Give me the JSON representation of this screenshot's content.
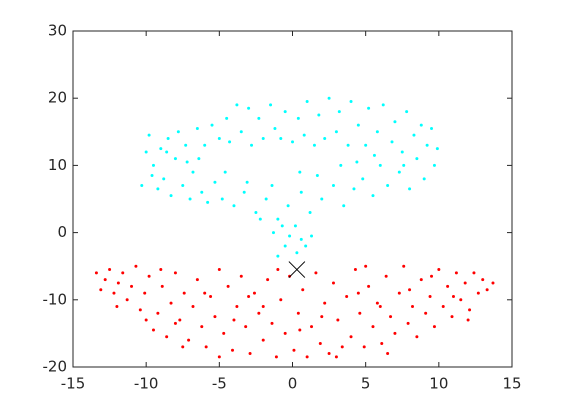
{
  "chart_data": {
    "type": "scatter",
    "xlim": [
      -15,
      15
    ],
    "xticks": [
      -15,
      -10,
      -5,
      0,
      5,
      10,
      15
    ],
    "ylim": [
      -20,
      30
    ],
    "yticks": [
      -20,
      -10,
      0,
      10,
      20,
      30
    ],
    "series": [
      {
        "color": "#00ffff",
        "marker": "dot",
        "x": [
          -10,
          -10.3,
          -9.8,
          -9.5,
          -9.2,
          -9,
          -8.8,
          -8.5,
          -8.3,
          -8,
          -7.8,
          -7.5,
          -7.3,
          -7,
          -6.8,
          -6.5,
          -6.2,
          -6,
          -5.8,
          -5.5,
          -5.3,
          -5,
          -4.8,
          -4.5,
          -4.3,
          -4,
          -3.8,
          -3.5,
          -3.3,
          -3,
          -2.8,
          -2.5,
          -2.3,
          -2,
          -1.8,
          -1.5,
          -1.2,
          -1,
          -0.8,
          -0.5,
          -0.3,
          0,
          0.2,
          0.4,
          0.6,
          0.8,
          1,
          1.2,
          1.5,
          1.8,
          2,
          2.2,
          2.5,
          2.8,
          3,
          3.2,
          3.5,
          3.8,
          4,
          4.2,
          4.5,
          4.8,
          5,
          5.2,
          5.5,
          5.8,
          6,
          6.2,
          6.5,
          6.8,
          7,
          7.3,
          7.5,
          7.8,
          8,
          8.3,
          8.5,
          8.8,
          9,
          9.2,
          9.5,
          9.7,
          9.9,
          -9.6,
          -8.6,
          -7.2,
          -4.6,
          -3.1,
          -2.2,
          -1.4,
          0.5,
          1.7,
          3.3,
          5.6,
          7.6,
          4.4,
          -6.4,
          -0.2,
          -0.5,
          0.3,
          -1,
          0.9,
          -1.3,
          1.3,
          -0.7,
          0.6
        ],
        "y": [
          12,
          7,
          14.5,
          10,
          6.5,
          12.5,
          8,
          14,
          5.5,
          11,
          15,
          7,
          13,
          5,
          9,
          15.5,
          6,
          13,
          4.5,
          16,
          7.5,
          14,
          5,
          17,
          13.5,
          4,
          19,
          15,
          6,
          18.5,
          13,
          3,
          17,
          14,
          5,
          19,
          15.5,
          2,
          14,
          18,
          4,
          13.5,
          1,
          17,
          6,
          14.5,
          19.5,
          3,
          13,
          17.5,
          5,
          14,
          20,
          7,
          15,
          18,
          4,
          13,
          19.5,
          6.5,
          16,
          8,
          13,
          18.5,
          5.5,
          15,
          10,
          19,
          7,
          13.5,
          16.5,
          9,
          12,
          18,
          6.5,
          14.5,
          11,
          16,
          8,
          13,
          15.5,
          10,
          12.5,
          8.5,
          12,
          10.5,
          9,
          7.5,
          2,
          7,
          9,
          8.5,
          10,
          11.5,
          10,
          10.5,
          11,
          -0.5,
          -2,
          -3,
          -3.5,
          -2,
          0,
          -0.5,
          1,
          -1
        ]
      },
      {
        "color": "#ff0000",
        "marker": "dot",
        "x": [
          -13.4,
          -13.1,
          -12.8,
          -12.5,
          -12.2,
          -11.9,
          -11.6,
          -11.3,
          -11,
          -10.7,
          -10.4,
          -10.1,
          -9.8,
          -9.5,
          -9.2,
          -8.9,
          -8.6,
          -8.3,
          -8,
          -7.7,
          -7.4,
          -7.1,
          -6.8,
          -6.5,
          -6.2,
          -5.9,
          -5.6,
          -5.3,
          -5,
          -4.7,
          -4.4,
          -4.1,
          -3.8,
          -3.5,
          -3.2,
          -2.9,
          -2.6,
          -2.3,
          -2,
          -1.7,
          -1.4,
          -1.1,
          -0.8,
          -0.5,
          -0.2,
          0.1,
          0.4,
          0.7,
          1,
          1.3,
          1.6,
          1.9,
          2.2,
          2.5,
          2.8,
          3.1,
          3.4,
          3.7,
          4,
          4.3,
          4.6,
          4.9,
          5.2,
          5.5,
          5.8,
          6.1,
          6.4,
          6.7,
          7,
          7.3,
          7.6,
          7.9,
          8.2,
          8.5,
          8.8,
          9.1,
          9.4,
          9.7,
          10,
          10.3,
          10.6,
          10.9,
          11.2,
          11.5,
          11.8,
          12.1,
          12.4,
          12.7,
          13,
          13.3,
          13.7,
          -12,
          -10,
          -7.5,
          -5,
          -3,
          -1,
          0.5,
          2,
          3,
          4.5,
          6,
          8,
          9.5,
          11,
          -8,
          -6,
          -4,
          -2,
          6.5,
          5,
          -9,
          12
        ],
        "y": [
          -6,
          -8.5,
          -7,
          -5.5,
          -9,
          -7.5,
          -6,
          -10,
          -8,
          -5,
          -11.5,
          -9,
          -6.5,
          -14.5,
          -12,
          -8,
          -15.5,
          -10.5,
          -6,
          -13,
          -9,
          -16,
          -11,
          -7,
          -14,
          -17,
          -9.5,
          -12.5,
          -5.5,
          -15,
          -8,
          -17.5,
          -11,
          -6.5,
          -14,
          -18,
          -9,
          -12,
          -16,
          -7,
          -13.5,
          -18.5,
          -10,
          -15,
          -6.5,
          -17.5,
          -12,
          -8.5,
          -18.5,
          -14,
          -6,
          -16.5,
          -10.5,
          -18,
          -7.5,
          -13,
          -17,
          -9.5,
          -15.5,
          -5.5,
          -12,
          -17,
          -8,
          -14,
          -10.5,
          -16.5,
          -6.5,
          -12.5,
          -15,
          -9,
          -5,
          -13.5,
          -11,
          -15.5,
          -7,
          -12,
          -9.5,
          -14,
          -5.5,
          -11,
          -8,
          -12.5,
          -6,
          -10,
          -7.5,
          -11.5,
          -6,
          -9,
          -7,
          -8.5,
          -7.5,
          -11,
          -13,
          -17,
          -18.5,
          -9.5,
          -5.5,
          -14.5,
          -12.5,
          -18.5,
          -9,
          -11,
          -8.5,
          -6.5,
          -9.5,
          -13.5,
          -9,
          -13,
          -11,
          -18,
          -5,
          -5.5,
          -13
        ]
      },
      {
        "color": "#000000",
        "marker": "x",
        "x": [
          0.3
        ],
        "y": [
          -5.5
        ]
      }
    ]
  }
}
